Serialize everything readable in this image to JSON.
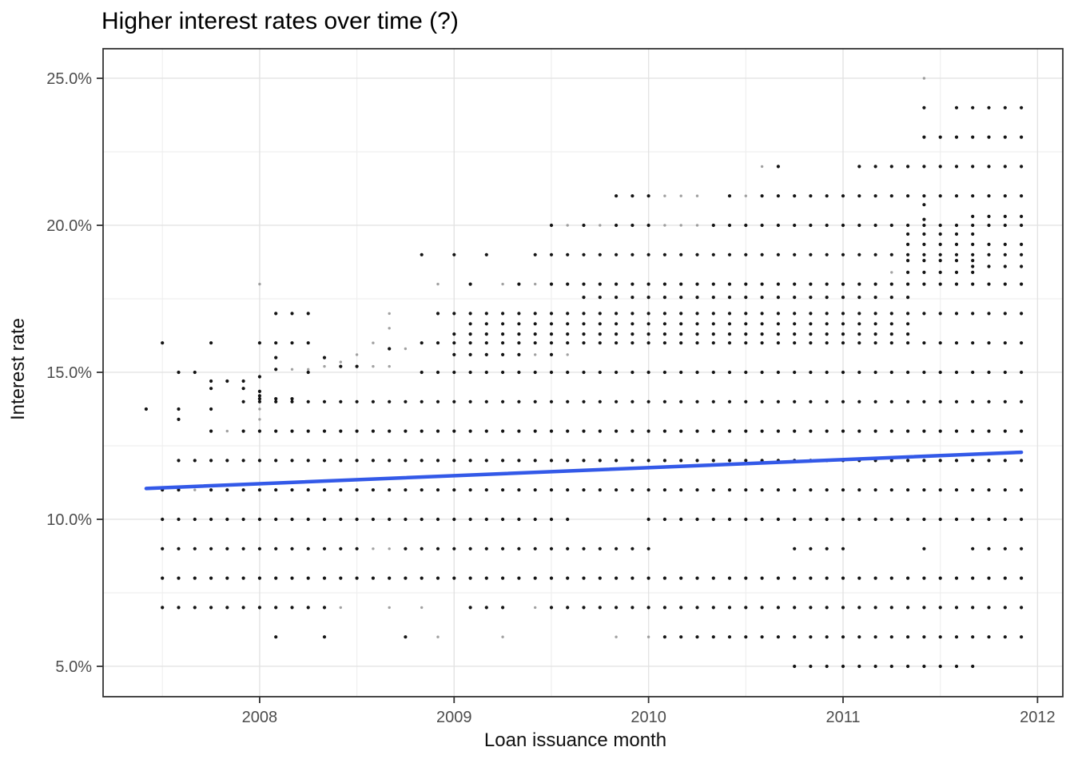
{
  "chart_data": {
    "type": "scatter",
    "title": "Higher interest rates over time (?)",
    "xlabel": "Loan issuance month",
    "ylabel": "Interest rate",
    "x_domain": [
      2007.195,
      2012.13
    ],
    "y_domain": [
      3.967,
      26.005
    ],
    "x_ticks": [
      {
        "year": 2008,
        "label": "2008"
      },
      {
        "year": 2009,
        "label": "2009"
      },
      {
        "year": 2010,
        "label": "2010"
      },
      {
        "year": 2011,
        "label": "2011"
      },
      {
        "year": 2012,
        "label": "2012"
      }
    ],
    "x_minor": [
      2007.5,
      2008.5,
      2009.5,
      2010.5,
      2011.5
    ],
    "y_ticks": [
      {
        "value": 5,
        "label": "5.0%"
      },
      {
        "value": 10,
        "label": "10.0%"
      },
      {
        "value": 15,
        "label": "15.0%"
      },
      {
        "value": 20,
        "label": "20.0%"
      },
      {
        "value": 25,
        "label": "25.0%"
      }
    ],
    "y_minor": [
      7.5,
      12.5,
      17.5,
      22.5
    ],
    "month_index_origin": "2007-06",
    "months_total": 55,
    "grid_rows": [
      {
        "rate": 5,
        "spans": [
          [
            40,
            51
          ]
        ]
      },
      {
        "rate": 6,
        "spans": [
          [
            32,
            54
          ]
        ],
        "singles": [
          8,
          11,
          16
        ],
        "gray": [
          18,
          22,
          29,
          31
        ]
      },
      {
        "rate": 7,
        "spans": [
          [
            1,
            11
          ],
          [
            20,
            22
          ],
          [
            25,
            54
          ]
        ],
        "gray": [
          12,
          15,
          17,
          24
        ]
      },
      {
        "rate": 8,
        "spans": [
          [
            1,
            54
          ]
        ]
      },
      {
        "rate": 9,
        "spans": [
          [
            1,
            31
          ],
          [
            40,
            43
          ],
          [
            51,
            54
          ]
        ],
        "singles": [
          48
        ],
        "gray": [
          14,
          15
        ]
      },
      {
        "rate": 10,
        "spans": [
          [
            1,
            26
          ],
          [
            31,
            54
          ]
        ]
      },
      {
        "rate": 11,
        "spans": [
          [
            1,
            54
          ]
        ],
        "gray": [
          3
        ]
      },
      {
        "rate": 12,
        "spans": [
          [
            2,
            54
          ]
        ]
      },
      {
        "rate": 13,
        "spans": [
          [
            4,
            54
          ]
        ],
        "gray": [
          5
        ]
      },
      {
        "rate": 14,
        "spans": [
          [
            6,
            54
          ]
        ]
      },
      {
        "rate": 15,
        "spans": [
          [
            17,
            54
          ]
        ],
        "singles": [
          2,
          3,
          10
        ]
      },
      {
        "rate": 16,
        "spans": [
          [
            7,
            10
          ],
          [
            17,
            54
          ]
        ],
        "singles": [
          1,
          4
        ],
        "gray": [
          14
        ]
      },
      {
        "rate": 17,
        "spans": [
          [
            8,
            10
          ],
          [
            18,
            54
          ]
        ],
        "gray": [
          15
        ]
      },
      {
        "rate": 18,
        "spans": [
          [
            25,
            54
          ]
        ],
        "singles": [
          20,
          23
        ],
        "gray": [
          7,
          18,
          22,
          24
        ]
      },
      {
        "rate": 19,
        "spans": [
          [
            24,
            54
          ]
        ],
        "singles": [
          17,
          19,
          21
        ]
      },
      {
        "rate": 20,
        "spans": [
          [
            25,
            54
          ]
        ],
        "gray": [
          26,
          28,
          32,
          33,
          34
        ]
      },
      {
        "rate": 21,
        "spans": [
          [
            29,
            34
          ],
          [
            36,
            54
          ]
        ],
        "gray": [
          32,
          33,
          34,
          37
        ]
      },
      {
        "rate": 22,
        "spans": [
          [
            44,
            54
          ]
        ],
        "singles": [
          39
        ],
        "gray": [
          38
        ]
      },
      {
        "rate": 23,
        "spans": [
          [
            48,
            54
          ]
        ]
      },
      {
        "rate": 24,
        "spans": [
          [
            50,
            54
          ]
        ],
        "singles": [
          48
        ]
      },
      {
        "rate": 25,
        "gray": [
          48
        ]
      },
      {
        "rate": 15.6,
        "spans": [
          [
            19,
            23
          ]
        ],
        "singles": [
          25
        ],
        "gray": [
          24,
          26
        ]
      },
      {
        "rate": 16.3,
        "spans": [
          [
            19,
            47
          ]
        ]
      },
      {
        "rate": 16.65,
        "spans": [
          [
            20,
            47
          ]
        ]
      },
      {
        "rate": 17.55,
        "spans": [
          [
            27,
            47
          ]
        ]
      },
      {
        "rate": 18.4,
        "spans": [
          [
            47,
            51
          ]
        ],
        "gray": [
          46
        ]
      },
      {
        "rate": 18.6,
        "spans": [
          [
            51,
            54
          ]
        ]
      },
      {
        "rate": 18.8,
        "spans": [
          [
            47,
            51
          ]
        ]
      },
      {
        "rate": 19.35,
        "spans": [
          [
            47,
            54
          ]
        ]
      },
      {
        "rate": 19.7,
        "spans": [
          [
            47,
            51
          ]
        ]
      },
      {
        "rate": 20.3,
        "spans": [
          [
            51,
            54
          ]
        ]
      }
    ],
    "extra_points": [
      [
        0,
        13.75,
        0
      ],
      [
        2,
        13.75,
        0
      ],
      [
        4,
        13.75,
        0
      ],
      [
        7,
        13.75,
        1
      ],
      [
        2,
        13.4,
        0
      ],
      [
        7,
        13.4,
        1
      ],
      [
        4,
        14.7,
        0
      ],
      [
        5,
        14.7,
        0
      ],
      [
        6,
        14.7,
        0
      ],
      [
        4,
        14.45,
        0
      ],
      [
        6,
        14.45,
        0
      ],
      [
        7,
        14.85,
        0
      ],
      [
        7,
        14.35,
        0
      ],
      [
        7,
        14.2,
        0
      ],
      [
        7,
        14.1,
        0
      ],
      [
        8,
        15.5,
        0
      ],
      [
        8,
        15.1,
        0
      ],
      [
        8,
        14.1,
        0
      ],
      [
        9,
        15.1,
        1
      ],
      [
        9,
        14.1,
        0
      ],
      [
        10,
        15.1,
        1
      ],
      [
        11,
        15.5,
        0
      ],
      [
        11,
        15.2,
        1
      ],
      [
        12,
        15.35,
        1
      ],
      [
        12,
        15.2,
        0
      ],
      [
        13,
        15.6,
        1
      ],
      [
        13,
        15.2,
        0
      ],
      [
        14,
        15.2,
        1
      ],
      [
        15,
        15.8,
        0
      ],
      [
        15,
        15.2,
        1
      ],
      [
        15,
        16.5,
        1
      ],
      [
        16,
        15.8,
        1
      ],
      [
        48,
        20.7,
        0
      ],
      [
        48,
        20.2,
        0
      ]
    ],
    "trend": {
      "start_month": 0,
      "end_month": 54,
      "y_start": 11.05,
      "y_end": 12.28,
      "color": "#3359E8",
      "width": 4.5
    },
    "style": {
      "background": "#ffffff",
      "panel_border": "#333333",
      "grid_major": "#e3e3e3",
      "grid_minor": "#efefef",
      "tick_color": "#333333",
      "tick_label_color": "#4d4d4d",
      "dot_color": "#000000",
      "dot_gray": "#8a8a8a"
    }
  }
}
